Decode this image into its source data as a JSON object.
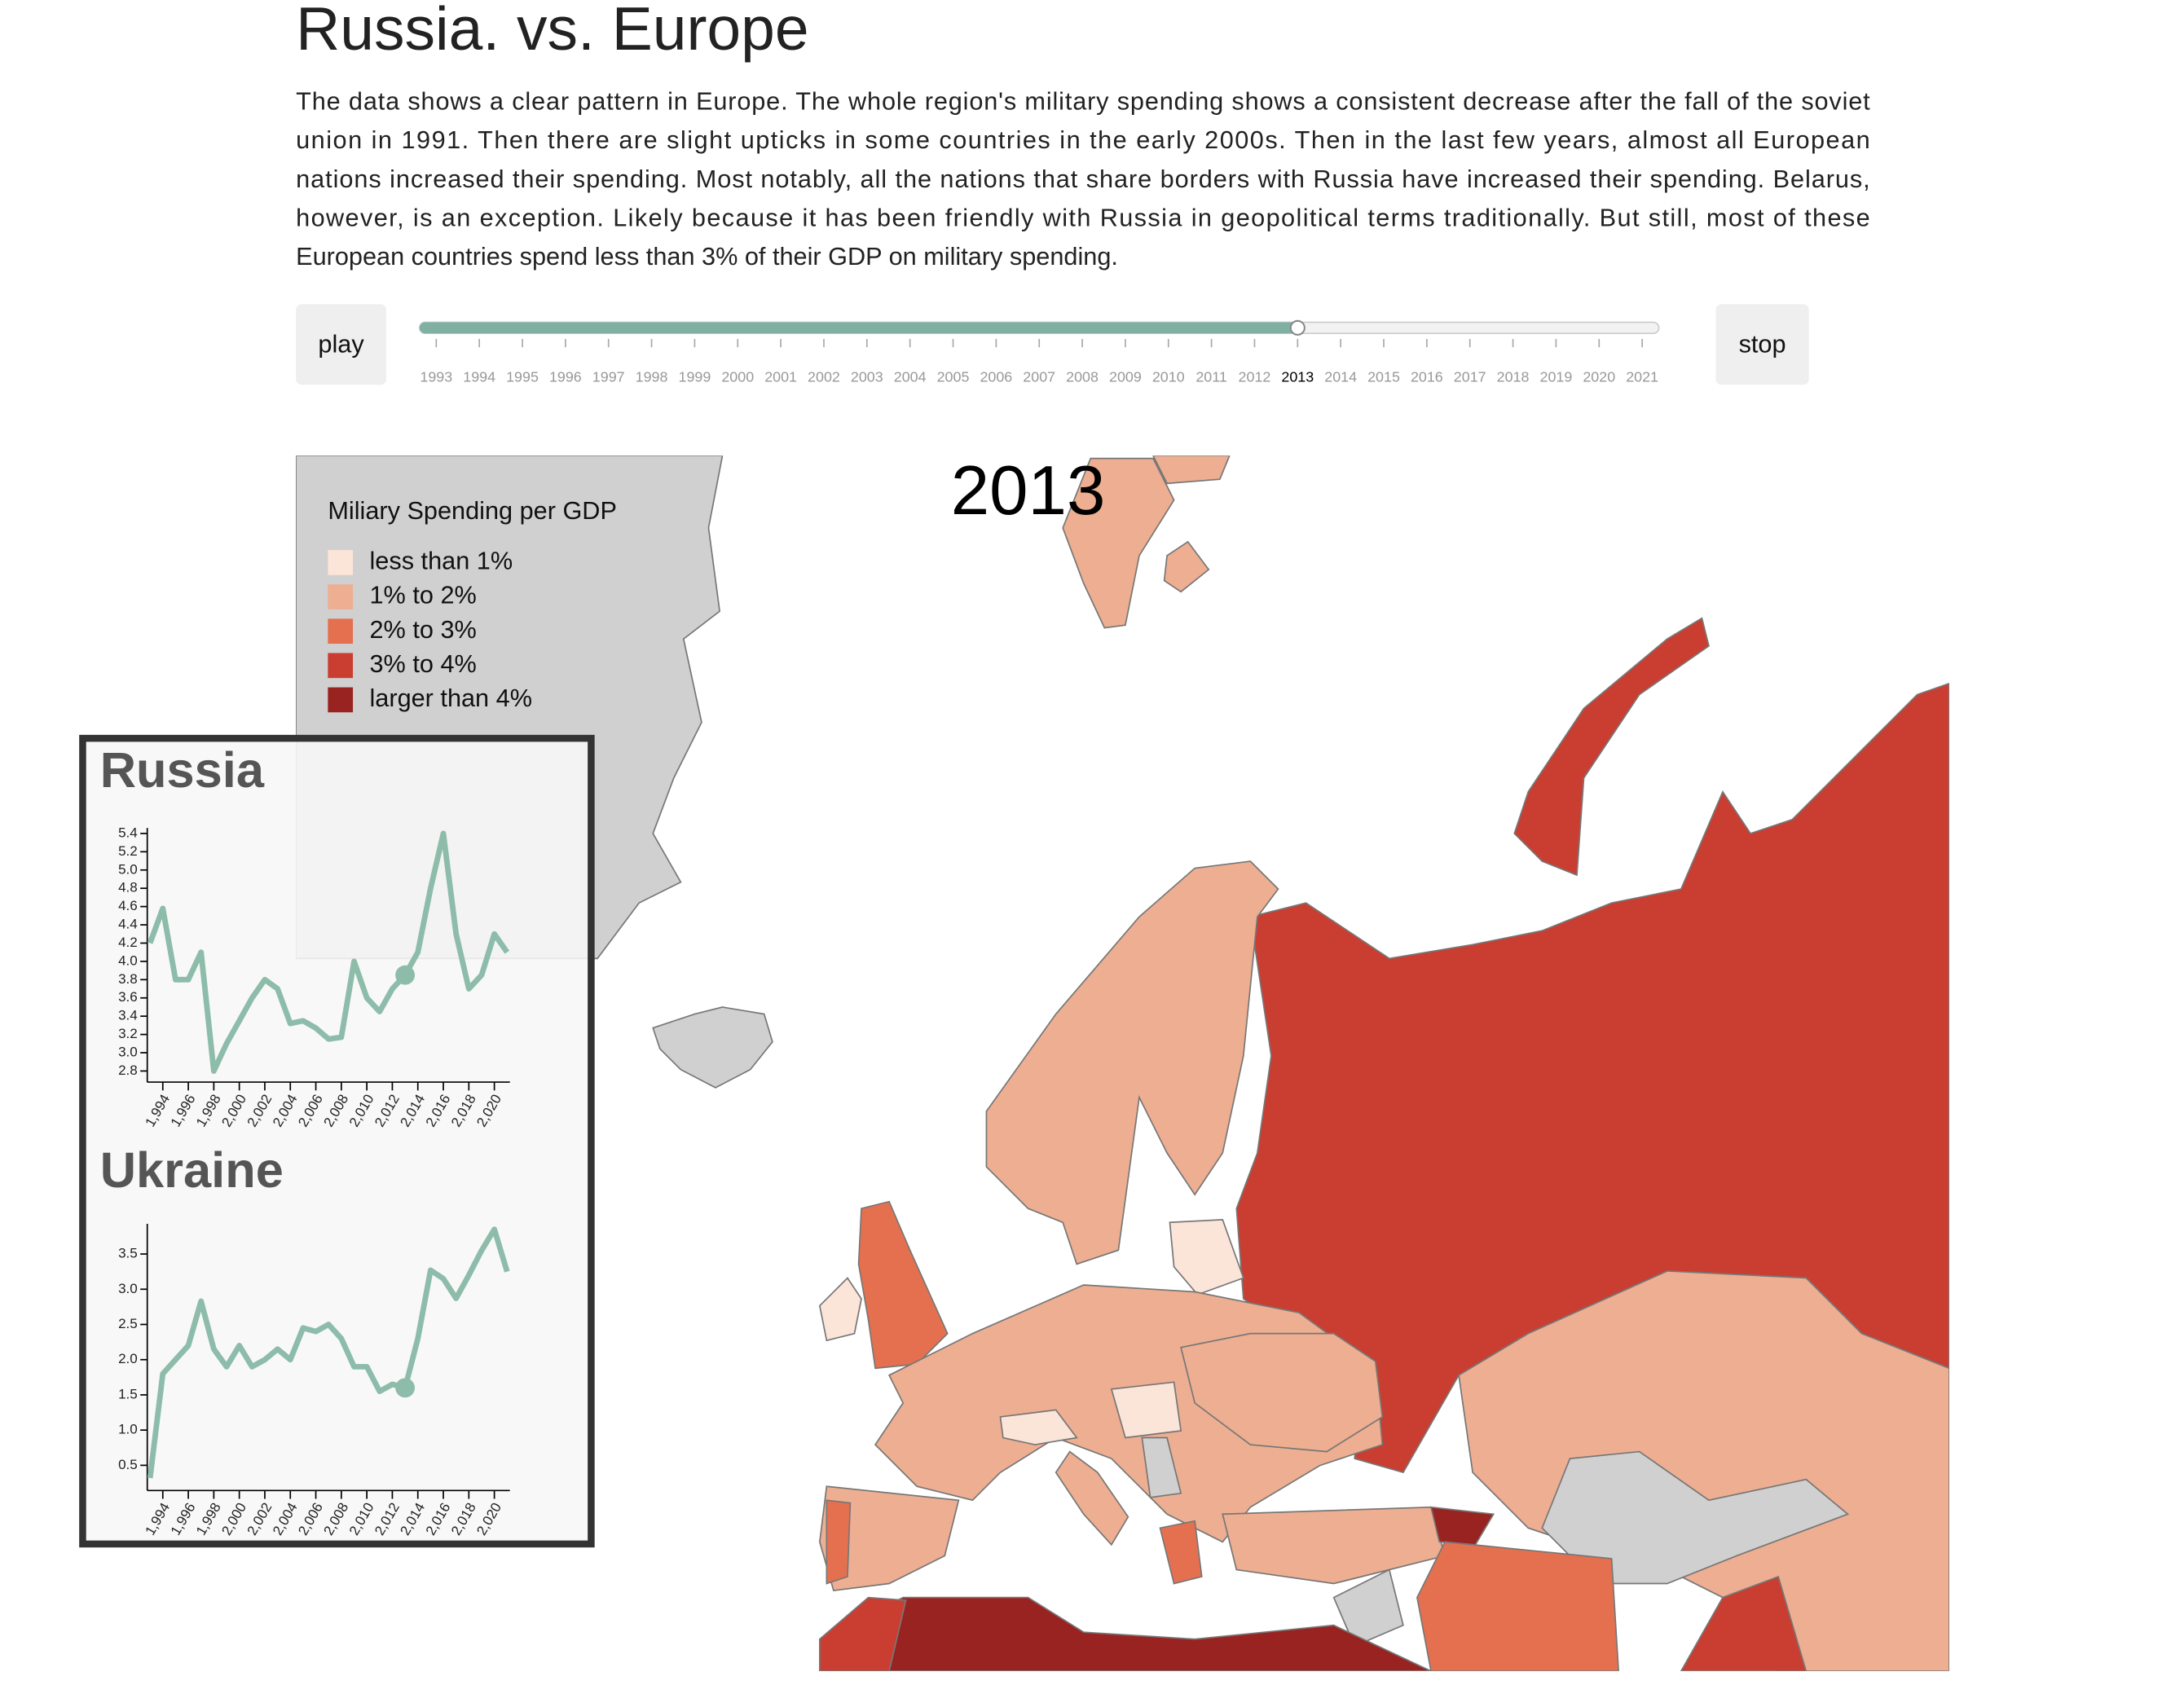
{
  "header": {
    "title": "Russia. vs. Europe",
    "paragraph": [
      "The data shows a clear pattern in Europe. The whole region's military spending shows a consistent decrease after the fall of the soviet",
      "union in 1991. Then there are slight upticks in some countries in the early 2000s. Then in the last few years, almost all European",
      "nations increased their spending. Most notably, all the nations that share borders with Russia have increased their spending. Belarus,",
      "however, is an exception. Likely because it has been friendly with Russia in geopolitical terms traditionally. But still, most of these",
      "European countries spend less than 3% of their GDP on military spending."
    ]
  },
  "controls": {
    "play": "play",
    "stop": "stop",
    "years": [
      1993,
      1994,
      1995,
      1996,
      1997,
      1998,
      1999,
      2000,
      2001,
      2002,
      2003,
      2004,
      2005,
      2006,
      2007,
      2008,
      2009,
      2010,
      2011,
      2012,
      2013,
      2014,
      2015,
      2016,
      2017,
      2018,
      2019,
      2020,
      2021
    ],
    "current_year": 2013
  },
  "legend": {
    "title": "Miliary Spending per GDP",
    "items": [
      {
        "label": "less than 1%",
        "color": "#fbe4d8"
      },
      {
        "label": "1% to 2%",
        "color": "#edae91"
      },
      {
        "label": "2% to 3%",
        "color": "#e5704f"
      },
      {
        "label": "3% to 4%",
        "color": "#ca3d31"
      },
      {
        "label": "larger than 4%",
        "color": "#992321"
      }
    ]
  },
  "chart_data": [
    {
      "type": "line",
      "title": "Russia",
      "color": "#8dbcab",
      "x": [
        1993,
        1994,
        1995,
        1996,
        1997,
        1998,
        1999,
        2000,
        2001,
        2002,
        2003,
        2004,
        2005,
        2006,
        2007,
        2008,
        2009,
        2010,
        2011,
        2012,
        2013,
        2014,
        2015,
        2016,
        2017,
        2018,
        2019,
        2020,
        2021
      ],
      "values": [
        4.2,
        4.58,
        3.8,
        3.8,
        4.1,
        2.8,
        3.1,
        3.35,
        3.6,
        3.8,
        3.7,
        3.32,
        3.35,
        3.27,
        3.15,
        3.17,
        4.0,
        3.6,
        3.45,
        3.7,
        3.85,
        4.1,
        4.8,
        5.4,
        4.3,
        3.7,
        3.85,
        4.3,
        4.1
      ],
      "xlim": [
        1993,
        2021
      ],
      "ylim": [
        2.8,
        5.4
      ],
      "xticks": [
        {
          "value": 1994,
          "label": "1,994"
        },
        {
          "value": 1996,
          "label": "1,996"
        },
        {
          "value": 1998,
          "label": "1,998"
        },
        {
          "value": 2000,
          "label": "2,000"
        },
        {
          "value": 2002,
          "label": "2,002"
        },
        {
          "value": 2004,
          "label": "2,004"
        },
        {
          "value": 2006,
          "label": "2,006"
        },
        {
          "value": 2008,
          "label": "2,008"
        },
        {
          "value": 2010,
          "label": "2,010"
        },
        {
          "value": 2012,
          "label": "2,012"
        },
        {
          "value": 2014,
          "label": "2,014"
        },
        {
          "value": 2016,
          "label": "2,016"
        },
        {
          "value": 2018,
          "label": "2,018"
        },
        {
          "value": 2020,
          "label": "2,020"
        }
      ],
      "yticks": [
        2.8,
        {
          "value": 3,
          "label": "3.0"
        },
        3.2,
        3.4,
        3.6,
        3.8,
        {
          "value": 4,
          "label": "4.0"
        },
        4.2,
        4.4,
        4.6,
        4.8,
        {
          "value": 5,
          "label": "5.0"
        },
        5.2,
        5.4
      ]
    },
    {
      "type": "line",
      "title": "Ukraine",
      "color": "#8dbcab",
      "x": [
        1993,
        1994,
        1995,
        1996,
        1997,
        1998,
        1999,
        2000,
        2001,
        2002,
        2003,
        2004,
        2005,
        2006,
        2007,
        2008,
        2009,
        2010,
        2011,
        2012,
        2013,
        2014,
        2015,
        2016,
        2017,
        2018,
        2019,
        2020,
        2021
      ],
      "values": [
        0.32,
        1.8,
        2.0,
        2.2,
        2.83,
        2.15,
        1.9,
        2.2,
        1.9,
        2.0,
        2.15,
        2.0,
        2.45,
        2.4,
        2.5,
        2.3,
        1.9,
        1.9,
        1.55,
        1.65,
        1.6,
        2.3,
        3.27,
        3.15,
        2.87,
        3.2,
        3.55,
        3.85,
        3.25
      ],
      "xlim": [
        1993,
        2021
      ],
      "ylim": [
        0.3,
        3.85
      ],
      "xticks": [
        {
          "value": 1994,
          "label": "1,994"
        },
        {
          "value": 1996,
          "label": "1,996"
        },
        {
          "value": 1998,
          "label": "1,998"
        },
        {
          "value": 2000,
          "label": "2,000"
        },
        {
          "value": 2002,
          "label": "2,002"
        },
        {
          "value": 2004,
          "label": "2,004"
        },
        {
          "value": 2006,
          "label": "2,006"
        },
        {
          "value": 2008,
          "label": "2,008"
        },
        {
          "value": 2010,
          "label": "2,010"
        },
        {
          "value": 2012,
          "label": "2,012"
        },
        {
          "value": 2014,
          "label": "2,014"
        },
        {
          "value": 2016,
          "label": "2,016"
        },
        {
          "value": 2018,
          "label": "2,018"
        },
        {
          "value": 2020,
          "label": "2,020"
        }
      ],
      "yticks": [
        0.5,
        {
          "value": 1,
          "label": "1.0"
        },
        1.5,
        {
          "value": 2,
          "label": "2.0"
        },
        2.5,
        {
          "value": 3,
          "label": "3.0"
        },
        3.5
      ]
    }
  ]
}
